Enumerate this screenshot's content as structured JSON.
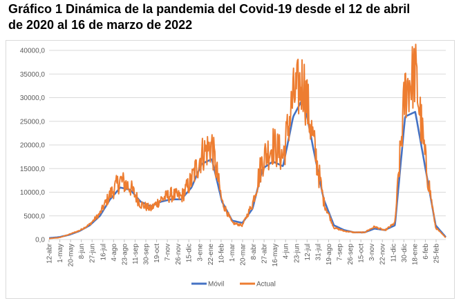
{
  "title": {
    "line1": "Gráfico 1 Dinámica de la pandemia del Covid-19 desde el 12 de abril",
    "line2": "de 2020 al 16 de marzo de 2022"
  },
  "chart_data": {
    "type": "line",
    "ylim": [
      0,
      40000
    ],
    "y_ticks": [
      "0,0",
      "5000,0",
      "10000,0",
      "15000,0",
      "20000,0",
      "25000,0",
      "30000,0",
      "35000,0",
      "40000,0"
    ],
    "y_tick_values": [
      0,
      5000,
      10000,
      15000,
      20000,
      25000,
      30000,
      35000,
      40000
    ],
    "x_ticks": [
      "12-abr",
      "1-may",
      "20-may",
      "8-jun",
      "27-jun",
      "16-jul",
      "4-ago",
      "23-ago",
      "11-sep",
      "30-sep",
      "19-oct",
      "7-nov",
      "26-nov",
      "15-dic",
      "3-ene",
      "22-ene",
      "10-feb",
      "1-mar",
      "20-mar",
      "8-abr",
      "27-abr",
      "16-may",
      "4-jun",
      "23-jun",
      "12-jul",
      "31-jul",
      "19-ago",
      "7-sep",
      "26-sep",
      "15-oct",
      "3-nov",
      "22-nov",
      "11-dic",
      "30-dic",
      "18-ene",
      "6-feb",
      "25-feb"
    ],
    "grid": true,
    "legend_position": "bottom",
    "x_points_per_tick": 19,
    "series": [
      {
        "name": "Móvil",
        "color": "#4472C4",
        "values": [
          300,
          500,
          1000,
          1800,
          3000,
          5000,
          8500,
          11000,
          10500,
          8000,
          7000,
          8000,
          8500,
          8500,
          11000,
          16000,
          17000,
          8000,
          4000,
          3500,
          6500,
          15000,
          16500,
          15500,
          26000,
          30000,
          19000,
          8500,
          3000,
          2000,
          1500,
          1500,
          2300,
          2000,
          3000,
          26000,
          27000,
          15000,
          3000,
          500
        ]
      },
      {
        "name": "Actual",
        "color": "#ED7D31",
        "values": [
          200,
          400,
          1100,
          1900,
          3200,
          5500,
          9500,
          12500,
          11000,
          7500,
          6500,
          8500,
          9500,
          9000,
          12500,
          18000,
          20000,
          8000,
          3500,
          3000,
          7500,
          17000,
          20000,
          17500,
          30000,
          33500,
          20500,
          8000,
          2500,
          1800,
          1500,
          1500,
          2700,
          1900,
          3500,
          31500,
          35500,
          16500,
          2500,
          400
        ]
      }
    ]
  }
}
